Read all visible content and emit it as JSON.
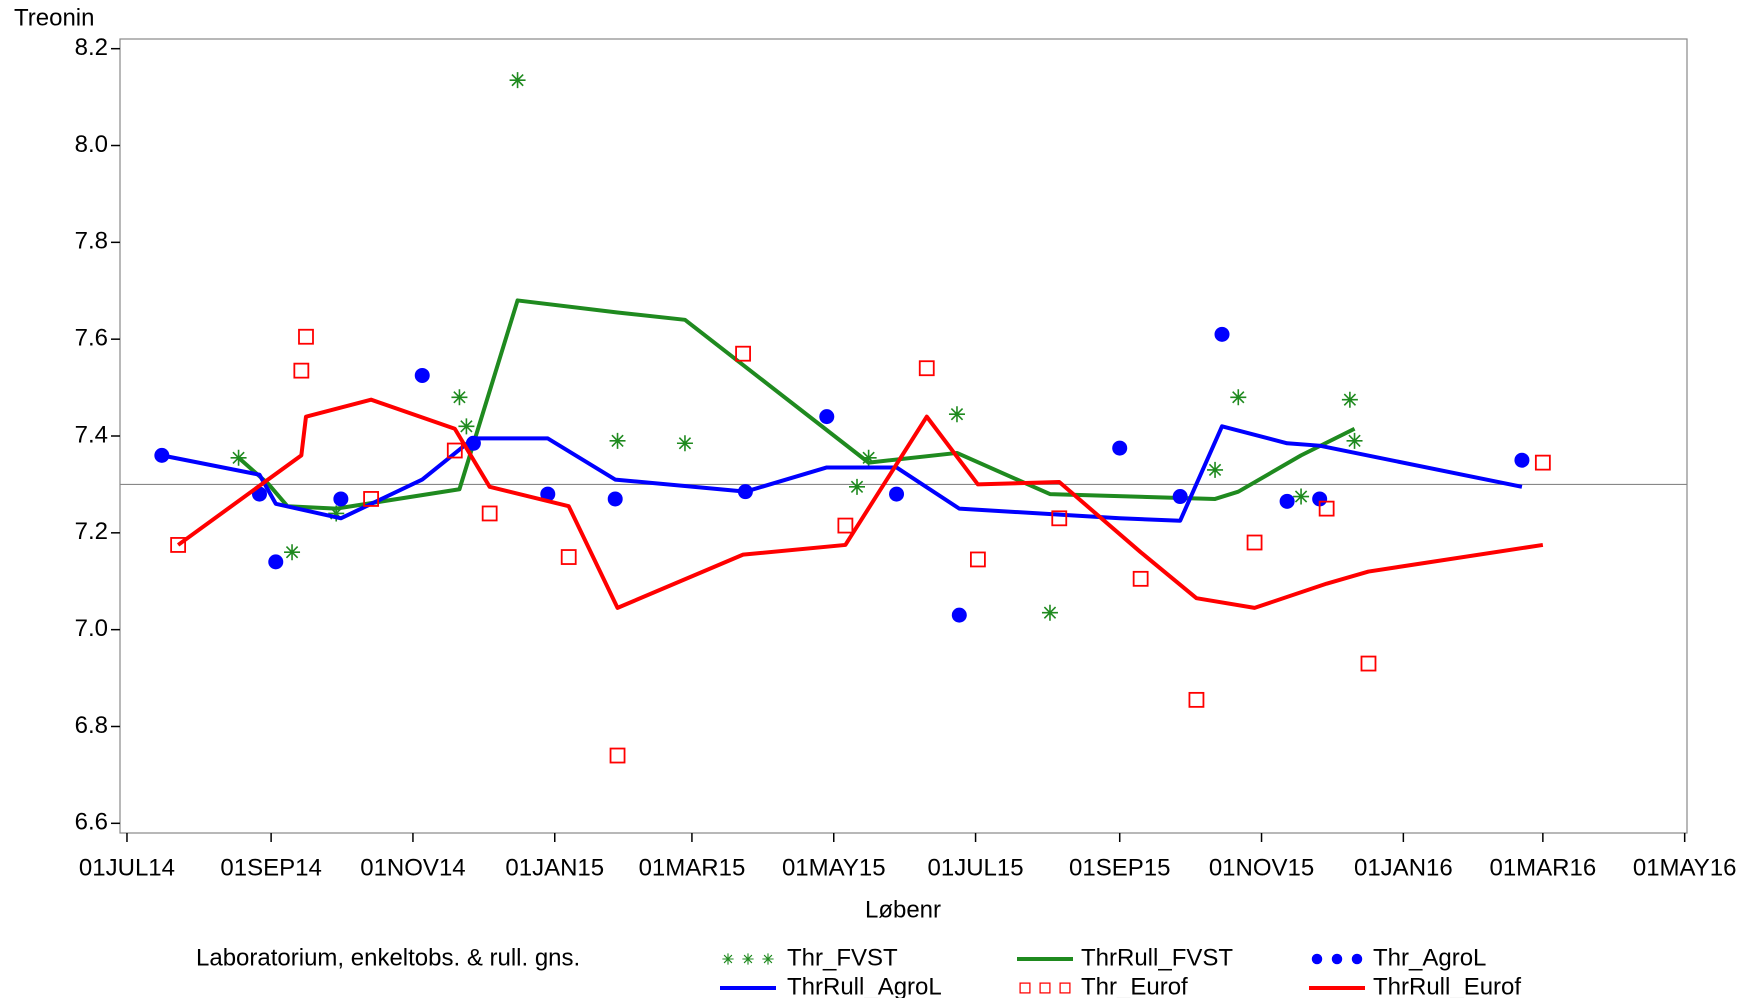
{
  "chart_data": {
    "type": "line",
    "title": "Treonin",
    "x_label": "Løbenr",
    "legend_title": "Laboratorium, enkeltobs. & rull. gns.",
    "xlim": [
      "2014-06-28",
      "2016-05-02"
    ],
    "xticks": [
      {
        "value": "2014-07-01",
        "label": "01JUL14"
      },
      {
        "value": "2014-09-01",
        "label": "01SEP14"
      },
      {
        "value": "2014-11-01",
        "label": "01NOV14"
      },
      {
        "value": "2015-01-01",
        "label": "01JAN15"
      },
      {
        "value": "2015-03-01",
        "label": "01MAR15"
      },
      {
        "value": "2015-05-01",
        "label": "01MAY15"
      },
      {
        "value": "2015-07-01",
        "label": "01JUL15"
      },
      {
        "value": "2015-09-01",
        "label": "01SEP15"
      },
      {
        "value": "2015-11-01",
        "label": "01NOV15"
      },
      {
        "value": "2016-01-01",
        "label": "01JAN16"
      },
      {
        "value": "2016-03-01",
        "label": "01MAR16"
      },
      {
        "value": "2016-05-01",
        "label": "01MAY16"
      }
    ],
    "ylim": [
      6.58,
      8.22
    ],
    "yticks": [
      6.6,
      6.8,
      {
        "value": 7,
        "label": "7.0"
      },
      7.2,
      7.4,
      7.6,
      7.8,
      {
        "value": 8,
        "label": "8.0"
      },
      8.2
    ],
    "refline": 7.3,
    "series": [
      {
        "name": "Thr_FVST",
        "color": "#1f8a1f",
        "mode": "star",
        "x": [
          "2014-08-18",
          "2014-09-10",
          "2014-09-29",
          "2014-11-21",
          "2014-11-24",
          "2014-12-16",
          "2015-01-28",
          "2015-02-26",
          "2015-05-11",
          "2015-05-16",
          "2015-06-23",
          "2015-08-02",
          "2015-10-12",
          "2015-10-22",
          "2015-11-18",
          "2015-12-09",
          "2015-12-11"
        ],
        "values": [
          7.355,
          7.16,
          7.24,
          7.48,
          7.42,
          8.135,
          7.39,
          7.385,
          7.295,
          7.355,
          7.445,
          7.035,
          7.33,
          7.48,
          7.275,
          7.475,
          7.39
        ]
      },
      {
        "name": "ThrRull_FVST",
        "color": "#1f8a1f",
        "mode": "line",
        "x": [
          "2014-08-18",
          "2014-08-31",
          "2014-09-08",
          "2014-09-29",
          "2014-11-21",
          "2014-12-16",
          "2015-01-28",
          "2015-02-26",
          "2015-05-16",
          "2015-06-23",
          "2015-08-02",
          "2015-10-12",
          "2015-10-22",
          "2015-11-18",
          "2015-12-11"
        ],
        "values": [
          7.355,
          7.3,
          7.255,
          7.25,
          7.29,
          7.68,
          7.655,
          7.64,
          7.345,
          7.365,
          7.28,
          7.27,
          7.285,
          7.36,
          7.415
        ]
      },
      {
        "name": "Thr_AgroL",
        "color": "#0000ff",
        "mode": "circle",
        "x": [
          "2014-07-16",
          "2014-08-27",
          "2014-09-03",
          "2014-10-01",
          "2014-11-05",
          "2014-11-27",
          "2014-12-29",
          "2015-01-27",
          "2015-03-24",
          "2015-04-28",
          "2015-05-28",
          "2015-06-24",
          "2015-09-01",
          "2015-09-27",
          "2015-10-15",
          "2015-11-12",
          "2015-11-26",
          "2016-02-21"
        ],
        "values": [
          7.36,
          7.28,
          7.14,
          7.27,
          7.525,
          7.385,
          7.28,
          7.27,
          7.285,
          7.44,
          7.28,
          7.03,
          7.375,
          7.275,
          7.61,
          7.265,
          7.27,
          7.35
        ]
      },
      {
        "name": "ThrRull_AgroL",
        "color": "#0000ff",
        "mode": "line",
        "x": [
          "2014-07-16",
          "2014-08-27",
          "2014-09-03",
          "2014-10-01",
          "2014-11-05",
          "2014-11-27",
          "2014-12-29",
          "2015-01-27",
          "2015-03-24",
          "2015-04-28",
          "2015-05-28",
          "2015-06-24",
          "2015-09-01",
          "2015-09-27",
          "2015-10-15",
          "2015-11-12",
          "2015-11-26",
          "2016-02-21"
        ],
        "values": [
          7.36,
          7.32,
          7.26,
          7.23,
          7.31,
          7.395,
          7.395,
          7.31,
          7.285,
          7.335,
          7.335,
          7.25,
          7.23,
          7.225,
          7.42,
          7.385,
          7.38,
          7.295
        ]
      },
      {
        "name": "Thr_Eurof",
        "color": "#ff0000",
        "mode": "square",
        "x": [
          "2014-07-23",
          "2014-09-14",
          "2014-09-16",
          "2014-10-14",
          "2014-11-19",
          "2014-12-04",
          "2015-01-07",
          "2015-01-28",
          "2015-03-23",
          "2015-05-06",
          "2015-06-10",
          "2015-07-02",
          "2015-08-06",
          "2015-09-10",
          "2015-10-04",
          "2015-10-29",
          "2015-11-29",
          "2015-12-17",
          "2016-03-01"
        ],
        "values": [
          7.175,
          7.535,
          7.605,
          7.27,
          7.37,
          7.24,
          7.15,
          6.74,
          7.57,
          7.215,
          7.54,
          7.145,
          7.23,
          7.105,
          6.855,
          7.18,
          7.25,
          6.93,
          7.345
        ]
      },
      {
        "name": "ThrRull_Eurof",
        "color": "#ff0000",
        "mode": "line",
        "x": [
          "2014-07-23",
          "2014-09-14",
          "2014-09-16",
          "2014-10-14",
          "2014-11-19",
          "2014-12-04",
          "2015-01-07",
          "2015-01-28",
          "2015-03-23",
          "2015-05-06",
          "2015-06-10",
          "2015-07-02",
          "2015-08-06",
          "2015-09-10",
          "2015-10-04",
          "2015-10-29",
          "2015-11-29",
          "2015-12-17",
          "2016-03-01"
        ],
        "values": [
          7.175,
          7.36,
          7.44,
          7.475,
          7.415,
          7.295,
          7.255,
          7.045,
          7.155,
          7.175,
          7.44,
          7.3,
          7.305,
          7.16,
          7.065,
          7.045,
          7.095,
          7.12,
          7.175
        ]
      }
    ]
  }
}
